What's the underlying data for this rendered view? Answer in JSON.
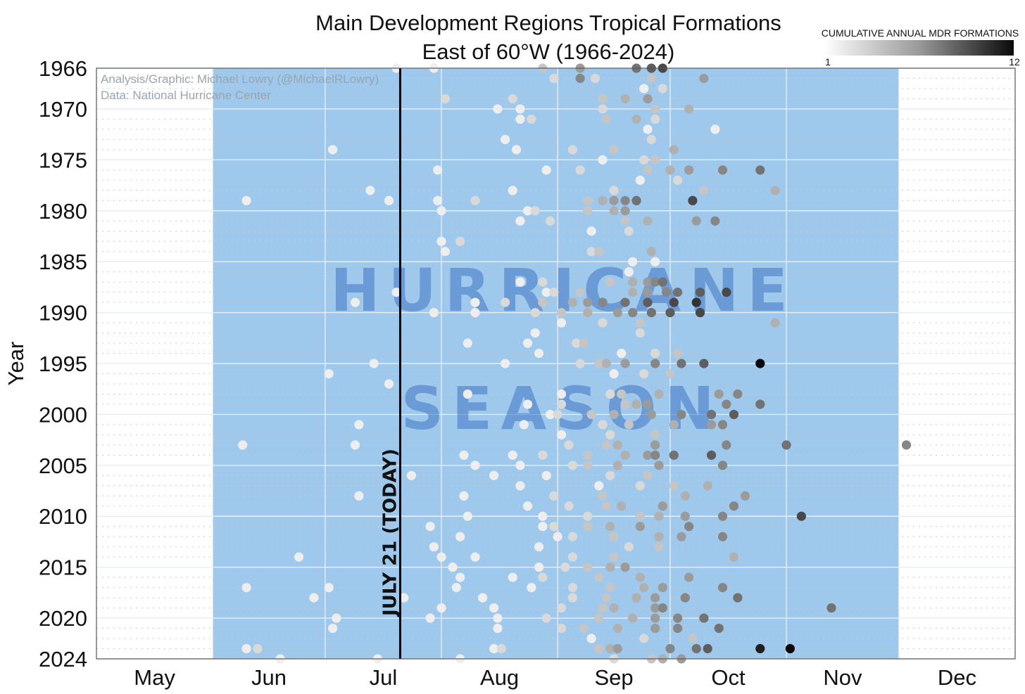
{
  "chart_data": {
    "type": "scatter",
    "title_line1": "Main Development Regions Tropical Formations",
    "title_line2": "East of 60°W (1966-2024)",
    "ylabel": "Year",
    "xlabel": "",
    "x_ticks": [
      "May",
      "Jun",
      "Jul",
      "Aug",
      "Sep",
      "Oct",
      "Nov",
      "Dec"
    ],
    "y_ticks": [
      "1966",
      "1970",
      "1975",
      "1980",
      "1985",
      "1990",
      "1995",
      "2000",
      "2005",
      "2010",
      "2015",
      "2020",
      "2024"
    ],
    "ylim": [
      1966,
      2024
    ],
    "y_reversed": true,
    "credit_line1": "Analysis/Graphic: Michael Lowry (@MichaelRLowry)",
    "credit_line2": "Data: National Hurricane Center",
    "season_word1": "HURRICANE",
    "season_word2": "SEASON",
    "season_start": "06-01",
    "season_end": "11-30",
    "today_line": {
      "date": "07-21",
      "label": "JULY 21 (TODAY)"
    },
    "colorbar": {
      "title": "CUMULATIVE ANNUAL MDR FORMATIONS",
      "min": 1,
      "max": 12,
      "min_label": "1",
      "max_label": "12"
    },
    "points_format": "[day of year, year, cumulative count]",
    "points": [
      [
        201,
        1966,
        1
      ],
      [
        211,
        1966,
        1
      ],
      [
        240,
        1966,
        3
      ],
      [
        250,
        1966,
        5
      ],
      [
        265,
        1966,
        7
      ],
      [
        269,
        1966,
        8
      ],
      [
        272,
        1966,
        9
      ],
      [
        243,
        1967,
        2
      ],
      [
        250,
        1967,
        6
      ],
      [
        254,
        1967,
        2
      ],
      [
        269,
        1967,
        3
      ],
      [
        283,
        1967,
        5
      ],
      [
        267,
        1968,
        1
      ],
      [
        272,
        1968,
        2
      ],
      [
        214,
        1969,
        2
      ],
      [
        232,
        1969,
        2
      ],
      [
        256,
        1969,
        3
      ],
      [
        262,
        1969,
        4
      ],
      [
        268,
        1969,
        5
      ],
      [
        228,
        1970,
        1
      ],
      [
        234,
        1970,
        1
      ],
      [
        256,
        1970,
        2
      ],
      [
        270,
        1970,
        3
      ],
      [
        279,
        1970,
        4
      ],
      [
        234,
        1971,
        1
      ],
      [
        237,
        1971,
        2
      ],
      [
        257,
        1971,
        3
      ],
      [
        265,
        1971,
        4
      ],
      [
        270,
        1971,
        2
      ],
      [
        268,
        1972,
        1
      ],
      [
        286,
        1972,
        1
      ],
      [
        230,
        1973,
        1
      ],
      [
        269,
        1973,
        2
      ],
      [
        184,
        1974,
        1
      ],
      [
        233,
        1974,
        1
      ],
      [
        248,
        1974,
        2
      ],
      [
        259,
        1974,
        3
      ],
      [
        275,
        1974,
        4
      ],
      [
        256,
        1975,
        1
      ],
      [
        267,
        1975,
        2
      ],
      [
        270,
        1975,
        3
      ],
      [
        212,
        1976,
        1
      ],
      [
        241,
        1976,
        1
      ],
      [
        250,
        1976,
        2
      ],
      [
        268,
        1976,
        3
      ],
      [
        274,
        1976,
        4
      ],
      [
        279,
        1976,
        5
      ],
      [
        288,
        1976,
        6
      ],
      [
        298,
        1976,
        7
      ],
      [
        266,
        1977,
        1
      ],
      [
        276,
        1977,
        2
      ],
      [
        194,
        1978,
        1
      ],
      [
        232,
        1978,
        1
      ],
      [
        259,
        1978,
        2
      ],
      [
        283,
        1978,
        3
      ],
      [
        302,
        1978,
        4
      ],
      [
        161,
        1979,
        1
      ],
      [
        199,
        1979,
        1
      ],
      [
        212,
        1979,
        1
      ],
      [
        222,
        1979,
        2
      ],
      [
        252,
        1979,
        3
      ],
      [
        256,
        1979,
        4
      ],
      [
        259,
        1979,
        5
      ],
      [
        262,
        1979,
        6
      ],
      [
        265,
        1979,
        7
      ],
      [
        280,
        1979,
        9
      ],
      [
        213,
        1980,
        1
      ],
      [
        236,
        1980,
        1
      ],
      [
        238,
        1980,
        2
      ],
      [
        252,
        1980,
        3
      ],
      [
        259,
        1980,
        4
      ],
      [
        262,
        1980,
        5
      ],
      [
        234,
        1981,
        1
      ],
      [
        242,
        1981,
        2
      ],
      [
        262,
        1981,
        3
      ],
      [
        268,
        1981,
        4
      ],
      [
        281,
        1981,
        5
      ],
      [
        286,
        1981,
        6
      ],
      [
        253,
        1982,
        1
      ],
      [
        263,
        1982,
        2
      ],
      [
        213,
        1983,
        1
      ],
      [
        218,
        1983,
        2
      ],
      [
        214,
        1984,
        1
      ],
      [
        253,
        1984,
        2
      ],
      [
        255,
        1984,
        3
      ],
      [
        269,
        1984,
        4
      ],
      [
        270,
        1985,
        1
      ],
      [
        264,
        1985,
        1
      ],
      [
        263,
        1986,
        1
      ],
      [
        234,
        1987,
        1
      ],
      [
        240,
        1987,
        2
      ],
      [
        258,
        1987,
        3
      ],
      [
        264,
        1987,
        4
      ],
      [
        268,
        1987,
        5
      ],
      [
        270,
        1987,
        6
      ],
      [
        272,
        1987,
        7
      ],
      [
        201,
        1988,
        1
      ],
      [
        241,
        1988,
        1
      ],
      [
        243,
        1988,
        2
      ],
      [
        250,
        1988,
        3
      ],
      [
        264,
        1988,
        4
      ],
      [
        268,
        1988,
        5
      ],
      [
        273,
        1988,
        6
      ],
      [
        276,
        1988,
        7
      ],
      [
        282,
        1988,
        8
      ],
      [
        289,
        1988,
        9
      ],
      [
        190,
        1989,
        1
      ],
      [
        222,
        1989,
        1
      ],
      [
        230,
        1989,
        2
      ],
      [
        240,
        1989,
        3
      ],
      [
        248,
        1989,
        4
      ],
      [
        252,
        1989,
        5
      ],
      [
        256,
        1989,
        6
      ],
      [
        262,
        1989,
        7
      ],
      [
        268,
        1989,
        8
      ],
      [
        275,
        1989,
        9
      ],
      [
        281,
        1989,
        10
      ],
      [
        211,
        1990,
        1
      ],
      [
        222,
        1990,
        1
      ],
      [
        238,
        1990,
        2
      ],
      [
        245,
        1990,
        3
      ],
      [
        252,
        1990,
        4
      ],
      [
        260,
        1990,
        5
      ],
      [
        264,
        1990,
        6
      ],
      [
        269,
        1990,
        7
      ],
      [
        274,
        1990,
        8
      ],
      [
        282,
        1990,
        9
      ],
      [
        245,
        1991,
        1
      ],
      [
        256,
        1991,
        2
      ],
      [
        266,
        1991,
        3
      ],
      [
        302,
        1991,
        4
      ],
      [
        238,
        1992,
        1
      ],
      [
        266,
        1992,
        2
      ],
      [
        220,
        1993,
        1
      ],
      [
        236,
        1993,
        1
      ],
      [
        249,
        1993,
        2
      ],
      [
        251,
        1993,
        3
      ],
      [
        239,
        1994,
        1
      ],
      [
        261,
        1994,
        1
      ],
      [
        270,
        1994,
        2
      ],
      [
        276,
        1994,
        3
      ],
      [
        195,
        1995,
        1
      ],
      [
        230,
        1995,
        1
      ],
      [
        250,
        1995,
        2
      ],
      [
        255,
        1995,
        3
      ],
      [
        257,
        1995,
        4
      ],
      [
        262,
        1995,
        5
      ],
      [
        270,
        1995,
        6
      ],
      [
        277,
        1995,
        7
      ],
      [
        283,
        1995,
        8
      ],
      [
        298,
        1995,
        12
      ],
      [
        183,
        1996,
        1
      ],
      [
        259,
        1996,
        1
      ],
      [
        267,
        1996,
        2
      ],
      [
        274,
        1996,
        3
      ],
      [
        199,
        1997,
        1
      ],
      [
        220,
        1998,
        1
      ],
      [
        245,
        1998,
        1
      ],
      [
        258,
        1998,
        2
      ],
      [
        261,
        1998,
        3
      ],
      [
        271,
        1998,
        4
      ],
      [
        287,
        1998,
        5
      ],
      [
        292,
        1998,
        6
      ],
      [
        236,
        1999,
        1
      ],
      [
        245,
        1999,
        2
      ],
      [
        262,
        1999,
        3
      ],
      [
        265,
        1999,
        4
      ],
      [
        268,
        1999,
        5
      ],
      [
        289,
        1999,
        6
      ],
      [
        298,
        1999,
        7
      ],
      [
        242,
        2000,
        1
      ],
      [
        244,
        2000,
        2
      ],
      [
        253,
        2000,
        3
      ],
      [
        259,
        2000,
        4
      ],
      [
        269,
        2000,
        5
      ],
      [
        277,
        2000,
        6
      ],
      [
        285,
        2000,
        7
      ],
      [
        291,
        2000,
        8
      ],
      [
        191,
        2001,
        1
      ],
      [
        235,
        2001,
        1
      ],
      [
        256,
        2001,
        2
      ],
      [
        263,
        2001,
        3
      ],
      [
        275,
        2001,
        4
      ],
      [
        285,
        2001,
        5
      ],
      [
        288,
        2001,
        6
      ],
      [
        245,
        2002,
        1
      ],
      [
        258,
        2002,
        2
      ],
      [
        270,
        2002,
        3
      ],
      [
        160,
        2003,
        1
      ],
      [
        190,
        2003,
        1
      ],
      [
        247,
        2003,
        2
      ],
      [
        257,
        2003,
        3
      ],
      [
        260,
        2003,
        4
      ],
      [
        270,
        2003,
        5
      ],
      [
        289,
        2003,
        6
      ],
      [
        305,
        2003,
        7
      ],
      [
        337,
        2003,
        6
      ],
      [
        219,
        2004,
        1
      ],
      [
        232,
        2004,
        1
      ],
      [
        240,
        2004,
        2
      ],
      [
        252,
        2004,
        3
      ],
      [
        262,
        2004,
        4
      ],
      [
        268,
        2004,
        5
      ],
      [
        270,
        2004,
        6
      ],
      [
        275,
        2004,
        7
      ],
      [
        285,
        2004,
        8
      ],
      [
        222,
        2005,
        1
      ],
      [
        234,
        2005,
        1
      ],
      [
        248,
        2005,
        2
      ],
      [
        252,
        2005,
        3
      ],
      [
        260,
        2005,
        4
      ],
      [
        271,
        2005,
        5
      ],
      [
        288,
        2005,
        6
      ],
      [
        205,
        2006,
        1
      ],
      [
        227,
        2006,
        1
      ],
      [
        241,
        2006,
        1
      ],
      [
        258,
        2006,
        2
      ],
      [
        268,
        2006,
        3
      ],
      [
        234,
        2007,
        1
      ],
      [
        255,
        2007,
        1
      ],
      [
        266,
        2007,
        2
      ],
      [
        275,
        2007,
        3
      ],
      [
        284,
        2007,
        4
      ],
      [
        191,
        2008,
        1
      ],
      [
        219,
        2008,
        1
      ],
      [
        243,
        2008,
        2
      ],
      [
        256,
        2008,
        3
      ],
      [
        278,
        2008,
        4
      ],
      [
        294,
        2008,
        5
      ],
      [
        236,
        2009,
        1
      ],
      [
        247,
        2009,
        2
      ],
      [
        257,
        2009,
        3
      ],
      [
        261,
        2009,
        4
      ],
      [
        272,
        2009,
        5
      ],
      [
        291,
        2009,
        6
      ],
      [
        220,
        2010,
        1
      ],
      [
        240,
        2010,
        1
      ],
      [
        252,
        2010,
        2
      ],
      [
        266,
        2010,
        3
      ],
      [
        271,
        2010,
        4
      ],
      [
        278,
        2010,
        5
      ],
      [
        288,
        2010,
        6
      ],
      [
        309,
        2010,
        9
      ],
      [
        210,
        2011,
        1
      ],
      [
        240,
        2011,
        1
      ],
      [
        243,
        2011,
        2
      ],
      [
        252,
        2011,
        3
      ],
      [
        258,
        2011,
        4
      ],
      [
        266,
        2011,
        5
      ],
      [
        279,
        2011,
        6
      ],
      [
        218,
        2012,
        1
      ],
      [
        244,
        2012,
        1
      ],
      [
        248,
        2012,
        2
      ],
      [
        259,
        2012,
        3
      ],
      [
        271,
        2012,
        4
      ],
      [
        277,
        2012,
        5
      ],
      [
        288,
        2012,
        6
      ],
      [
        211,
        2013,
        1
      ],
      [
        239,
        2013,
        1
      ],
      [
        263,
        2013,
        2
      ],
      [
        271,
        2013,
        3
      ],
      [
        175,
        2014,
        1
      ],
      [
        213,
        2014,
        1
      ],
      [
        222,
        2014,
        1
      ],
      [
        248,
        2014,
        2
      ],
      [
        259,
        2014,
        3
      ],
      [
        291,
        2014,
        4
      ],
      [
        216,
        2015,
        1
      ],
      [
        239,
        2015,
        1
      ],
      [
        246,
        2015,
        2
      ],
      [
        252,
        2015,
        3
      ],
      [
        258,
        2015,
        4
      ],
      [
        262,
        2015,
        5
      ],
      [
        218,
        2016,
        1
      ],
      [
        232,
        2016,
        1
      ],
      [
        240,
        2016,
        2
      ],
      [
        255,
        2016,
        3
      ],
      [
        266,
        2016,
        4
      ],
      [
        279,
        2016,
        5
      ],
      [
        161,
        2017,
        1
      ],
      [
        183,
        2017,
        1
      ],
      [
        217,
        2017,
        1
      ],
      [
        237,
        2017,
        1
      ],
      [
        248,
        2017,
        2
      ],
      [
        258,
        2017,
        3
      ],
      [
        267,
        2017,
        4
      ],
      [
        272,
        2017,
        5
      ],
      [
        288,
        2017,
        6
      ],
      [
        179,
        2018,
        1
      ],
      [
        203,
        2018,
        1
      ],
      [
        224,
        2018,
        1
      ],
      [
        248,
        2018,
        2
      ],
      [
        257,
        2018,
        3
      ],
      [
        265,
        2018,
        4
      ],
      [
        270,
        2018,
        5
      ],
      [
        278,
        2018,
        6
      ],
      [
        292,
        2018,
        7
      ],
      [
        213,
        2019,
        1
      ],
      [
        227,
        2019,
        1
      ],
      [
        245,
        2019,
        2
      ],
      [
        256,
        2019,
        3
      ],
      [
        259,
        2019,
        4
      ],
      [
        270,
        2019,
        5
      ],
      [
        272,
        2019,
        6
      ],
      [
        317,
        2019,
        7
      ],
      [
        185,
        2020,
        1
      ],
      [
        210,
        2020,
        1
      ],
      [
        228,
        2020,
        1
      ],
      [
        241,
        2020,
        2
      ],
      [
        255,
        2020,
        3
      ],
      [
        264,
        2020,
        4
      ],
      [
        270,
        2020,
        5
      ],
      [
        276,
        2020,
        6
      ],
      [
        283,
        2020,
        7
      ],
      [
        184,
        2021,
        1
      ],
      [
        228,
        2021,
        1
      ],
      [
        245,
        2021,
        2
      ],
      [
        251,
        2021,
        3
      ],
      [
        260,
        2021,
        4
      ],
      [
        270,
        2021,
        5
      ],
      [
        276,
        2021,
        6
      ],
      [
        287,
        2021,
        7
      ],
      [
        253,
        2022,
        1
      ],
      [
        267,
        2022,
        2
      ],
      [
        280,
        2022,
        3
      ],
      [
        161,
        2023,
        1
      ],
      [
        164,
        2023,
        2
      ],
      [
        227,
        2023,
        1
      ],
      [
        229,
        2023,
        2
      ],
      [
        255,
        2023,
        3
      ],
      [
        258,
        2023,
        4
      ],
      [
        260,
        2023,
        5
      ],
      [
        274,
        2023,
        6
      ],
      [
        281,
        2023,
        7
      ],
      [
        284,
        2023,
        8
      ],
      [
        298,
        2023,
        11
      ],
      [
        306,
        2023,
        12
      ],
      [
        170,
        2024,
        1
      ],
      [
        196,
        2024,
        1
      ],
      [
        218,
        2024,
        1
      ],
      [
        259,
        2024,
        2
      ],
      [
        269,
        2024,
        3
      ],
      [
        272,
        2024,
        4
      ],
      [
        277,
        2024,
        5
      ]
    ]
  }
}
